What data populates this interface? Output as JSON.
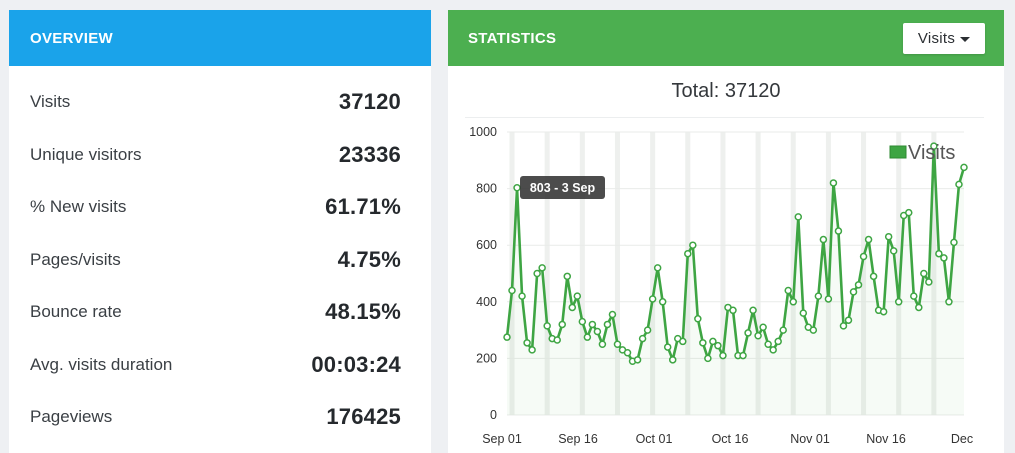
{
  "overview": {
    "title": "OVERVIEW",
    "stats": [
      {
        "label": "Visits",
        "value": "37120"
      },
      {
        "label": "Unique visitors",
        "value": "23336"
      },
      {
        "label": "% New visits",
        "value": "61.71%"
      },
      {
        "label": "Pages/visits",
        "value": "4.75%"
      },
      {
        "label": "Bounce rate",
        "value": "48.15%"
      },
      {
        "label": "Avg. visits duration",
        "value": "00:03:24"
      },
      {
        "label": "Pageviews",
        "value": "176425"
      }
    ]
  },
  "statistics": {
    "title": "STATISTICS",
    "dropdown_label": "Visits",
    "total_text": "Total: 37120",
    "colors": {
      "overview_header": "#1aa3ea",
      "stats_header": "#4caf50",
      "line": "#3ea543"
    }
  },
  "chart_data": {
    "type": "line",
    "legend": "Visits",
    "ylim": [
      0,
      1000
    ],
    "yticks": [
      "0",
      "200",
      "400",
      "600",
      "800",
      "1000"
    ],
    "xticks": [
      "Sep 01",
      "Sep 16",
      "Oct 01",
      "Oct 16",
      "Nov 01",
      "Nov 16",
      "Dec"
    ],
    "tooltip": "803 - 3 Sep",
    "series": [
      {
        "name": "Visits",
        "values": [
          275,
          440,
          803,
          420,
          255,
          230,
          500,
          520,
          315,
          270,
          265,
          320,
          490,
          380,
          420,
          330,
          275,
          320,
          295,
          250,
          320,
          355,
          250,
          230,
          220,
          190,
          195,
          270,
          300,
          410,
          520,
          400,
          240,
          195,
          270,
          260,
          570,
          600,
          340,
          255,
          200,
          260,
          245,
          210,
          380,
          370,
          210,
          210,
          290,
          370,
          280,
          310,
          250,
          230,
          260,
          300,
          440,
          400,
          700,
          360,
          310,
          300,
          420,
          620,
          410,
          820,
          650,
          315,
          335,
          435,
          460,
          560,
          620,
          490,
          370,
          365,
          630,
          580,
          400,
          705,
          715,
          420,
          380,
          500,
          470,
          950,
          570,
          555,
          400,
          610,
          815,
          875
        ]
      }
    ]
  }
}
